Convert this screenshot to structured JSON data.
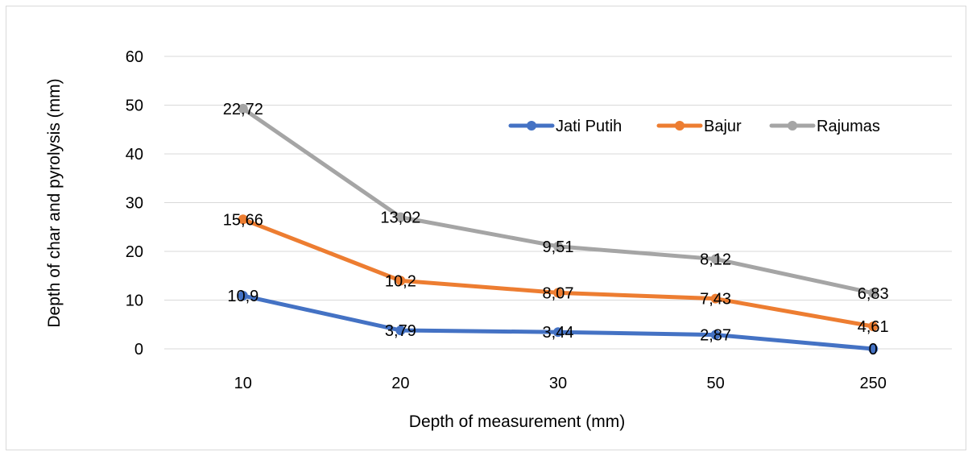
{
  "chart_data": {
    "type": "line",
    "title": "",
    "xlabel": "Depth of measurement (mm)",
    "ylabel": "Depth of char and pyrolysis (mm)",
    "categories": [
      "10",
      "20",
      "30",
      "50",
      "250"
    ],
    "ylim": [
      0,
      60
    ],
    "yticks": [
      "0",
      "10",
      "20",
      "30",
      "40",
      "50",
      "60"
    ],
    "grid": true,
    "legend_position": "top-right",
    "series": [
      {
        "name": "Jati Putih",
        "color": "#4472c4",
        "values": [
          10.9,
          3.79,
          3.44,
          2.87,
          0
        ],
        "labels": [
          "10,9",
          "3,79",
          "3,44",
          "2,87",
          "0"
        ]
      },
      {
        "name": "Bajur",
        "color": "#ed7d31",
        "values": [
          26.56,
          13.99,
          11.51,
          10.3,
          4.61
        ],
        "labels": [
          "15,66",
          "10,2",
          "8,07",
          "7,43",
          "4,61"
        ]
      },
      {
        "name": "Rajumas",
        "color": "#a5a5a5",
        "values": [
          49.28,
          27.01,
          21.02,
          18.42,
          11.44
        ],
        "labels": [
          "22,72",
          "13,02",
          "9,51",
          "8,12",
          "6,83"
        ]
      }
    ]
  }
}
